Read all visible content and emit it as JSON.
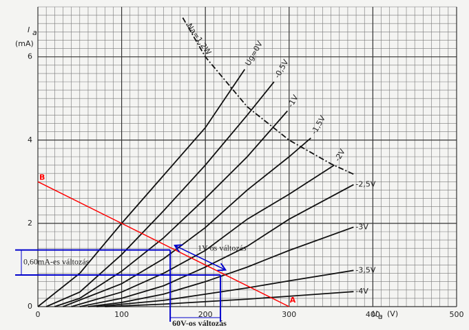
{
  "chart_data": {
    "type": "line",
    "xlim": [
      0,
      500
    ],
    "ylim": [
      0,
      7.2
    ],
    "xticks": [
      0,
      100,
      200,
      300,
      400,
      500
    ],
    "yticks": [
      0,
      2,
      4,
      6
    ],
    "minor_xstep": 10,
    "minor_ystep": 0.2,
    "grid": true,
    "y_label": "I",
    "y_label_sub": "a",
    "y_unit": "(mA)",
    "x_label": "U",
    "x_label_sub": "a",
    "x_unit": "(V)",
    "series": [
      {
        "name": "Ug=0V",
        "color": "#111111",
        "x": [
          0,
          50,
          100,
          150,
          200,
          247
        ],
        "values": [
          0,
          0.8,
          2.0,
          3.15,
          4.3,
          5.7
        ]
      },
      {
        "name": "-0,5V",
        "color": "#111111",
        "x": [
          10,
          50,
          100,
          150,
          200,
          250,
          282
        ],
        "values": [
          0,
          0.35,
          1.25,
          2.3,
          3.4,
          4.6,
          5.4
        ]
      },
      {
        "name": "-1V",
        "color": "#111111",
        "x": [
          20,
          50,
          100,
          150,
          200,
          250,
          298
        ],
        "values": [
          0,
          0.2,
          0.85,
          1.65,
          2.6,
          3.6,
          4.7
        ]
      },
      {
        "name": "-1,5V",
        "color": "#111111",
        "x": [
          30,
          100,
          150,
          200,
          250,
          300,
          326
        ],
        "values": [
          0,
          0.55,
          1.15,
          1.9,
          2.8,
          3.6,
          4.05
        ]
      },
      {
        "name": "-2V",
        "color": "#111111",
        "x": [
          40,
          100,
          150,
          200,
          250,
          300,
          354
        ],
        "values": [
          0,
          0.35,
          0.8,
          1.35,
          2.1,
          2.7,
          3.4
        ]
      },
      {
        "name": "-2,5V",
        "color": "#111111",
        "x": [
          50,
          100,
          150,
          200,
          250,
          300,
          377
        ],
        "values": [
          0,
          0.2,
          0.5,
          0.95,
          1.45,
          2.1,
          2.93
        ]
      },
      {
        "name": "-3V",
        "color": "#111111",
        "x": [
          60,
          100,
          150,
          200,
          250,
          300,
          377
        ],
        "values": [
          0,
          0.1,
          0.3,
          0.6,
          0.95,
          1.35,
          1.91
        ]
      },
      {
        "name": "-3,5V",
        "color": "#111111",
        "x": [
          70,
          150,
          200,
          250,
          300,
          377
        ],
        "values": [
          0,
          0.15,
          0.3,
          0.45,
          0.62,
          0.87
        ]
      },
      {
        "name": "-4V",
        "color": "#111111",
        "x": [
          80,
          150,
          200,
          250,
          300,
          377
        ],
        "values": [
          0,
          0.06,
          0.12,
          0.18,
          0.25,
          0.36
        ]
      },
      {
        "name": "Na=1,2W",
        "color": "#111111",
        "dashed": true,
        "x": [
          173,
          200,
          250,
          300,
          350,
          377
        ],
        "values": [
          6.94,
          6.0,
          4.8,
          4.0,
          3.43,
          3.18
        ]
      }
    ],
    "load_line": {
      "color": "#ff0000",
      "x": [
        0,
        300
      ],
      "values": [
        3.0,
        0
      ],
      "labels": [
        "B",
        "A"
      ]
    },
    "markers": {
      "color": "#0000cc",
      "ua": [
        158,
        218
      ],
      "ia": [
        1.36,
        0.76
      ],
      "current_label": "0,60mA-es változás",
      "voltage_label": "60V-os változás",
      "grid_label": "1V-os változás"
    }
  }
}
